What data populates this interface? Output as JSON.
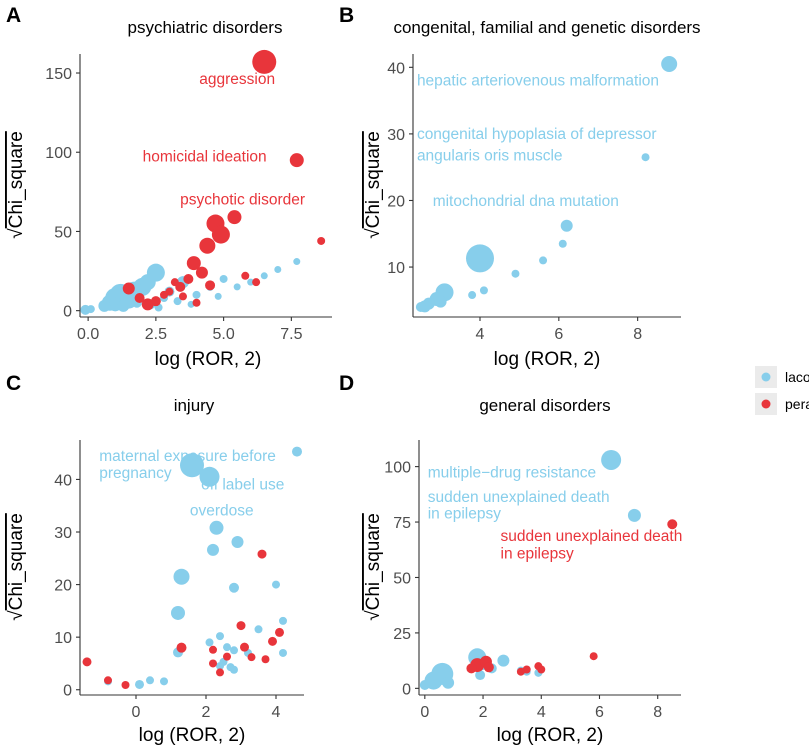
{
  "colors": {
    "lacosamide": "#87CEEB",
    "perampanel": "#E8353B",
    "axis": "#333333"
  },
  "legend": {
    "items": [
      {
        "key": "lacosamide",
        "label": "lacosamide"
      },
      {
        "key": "perampanel",
        "label": "perampanel"
      }
    ]
  },
  "chart_data": [
    {
      "type": "scatter",
      "panel_label": "A",
      "title": "psychiatric disorders",
      "xlabel": "log (ROR, 2)",
      "ylabel": "Chi_square",
      "ylabel_symbol": "√",
      "xlim": [
        -0.3,
        9.0
      ],
      "ylim": [
        -4,
        162
      ],
      "xticks": [
        0.0,
        2.5,
        5.0,
        7.5
      ],
      "xtick_labels": [
        "0.0",
        "2.5",
        "5.0",
        "7.5"
      ],
      "yticks": [
        0,
        50,
        100,
        150
      ],
      "ytick_labels": [
        "0",
        "50",
        "100",
        "150"
      ],
      "series": [
        {
          "name": "lacosamide",
          "points": [
            {
              "x": -0.1,
              "y": 0.5,
              "s": 5
            },
            {
              "x": 0.1,
              "y": 1,
              "s": 4
            },
            {
              "x": 0.6,
              "y": 3,
              "s": 6
            },
            {
              "x": 0.8,
              "y": 5,
              "s": 8
            },
            {
              "x": 1.0,
              "y": 8,
              "s": 10
            },
            {
              "x": 1.2,
              "y": 10,
              "s": 11
            },
            {
              "x": 1.5,
              "y": 7,
              "s": 9
            },
            {
              "x": 1.7,
              "y": 12,
              "s": 10
            },
            {
              "x": 2.0,
              "y": 15,
              "s": 9
            },
            {
              "x": 2.2,
              "y": 18,
              "s": 8
            },
            {
              "x": 2.5,
              "y": 24,
              "s": 9
            },
            {
              "x": 1.0,
              "y": 4,
              "s": 7
            },
            {
              "x": 1.3,
              "y": 3,
              "s": 6
            },
            {
              "x": 1.8,
              "y": 5,
              "s": 5
            },
            {
              "x": 2.3,
              "y": 4,
              "s": 5
            },
            {
              "x": 2.8,
              "y": 8,
              "s": 4
            },
            {
              "x": 3.0,
              "y": 12,
              "s": 5
            },
            {
              "x": 3.5,
              "y": 18,
              "s": 6
            },
            {
              "x": 3.3,
              "y": 6,
              "s": 4
            },
            {
              "x": 4.0,
              "y": 10,
              "s": 4
            },
            {
              "x": 4.5,
              "y": 15,
              "s": 4
            },
            {
              "x": 5.0,
              "y": 20,
              "s": 4
            },
            {
              "x": 5.5,
              "y": 15,
              "s": 3.5
            },
            {
              "x": 6.0,
              "y": 18,
              "s": 3.5
            },
            {
              "x": 6.5,
              "y": 22,
              "s": 3.5
            },
            {
              "x": 7.0,
              "y": 26,
              "s": 3.5
            },
            {
              "x": 7.7,
              "y": 31,
              "s": 3.5
            },
            {
              "x": 3.8,
              "y": 4,
              "s": 3.5
            },
            {
              "x": 2.6,
              "y": 2,
              "s": 4
            },
            {
              "x": 4.8,
              "y": 9,
              "s": 3.5
            }
          ]
        },
        {
          "name": "perampanel",
          "points": [
            {
              "x": 6.5,
              "y": 157,
              "s": 12
            },
            {
              "x": 7.7,
              "y": 95,
              "s": 7
            },
            {
              "x": 5.4,
              "y": 59,
              "s": 7
            },
            {
              "x": 4.7,
              "y": 55,
              "s": 9
            },
            {
              "x": 4.9,
              "y": 48,
              "s": 9
            },
            {
              "x": 4.4,
              "y": 41,
              "s": 8
            },
            {
              "x": 3.9,
              "y": 30,
              "s": 7
            },
            {
              "x": 4.2,
              "y": 24,
              "s": 6
            },
            {
              "x": 3.7,
              "y": 20,
              "s": 5
            },
            {
              "x": 4.5,
              "y": 16,
              "s": 5
            },
            {
              "x": 5.8,
              "y": 22,
              "s": 4
            },
            {
              "x": 6.2,
              "y": 18,
              "s": 4
            },
            {
              "x": 8.6,
              "y": 44,
              "s": 4
            },
            {
              "x": 3.4,
              "y": 15,
              "s": 5
            },
            {
              "x": 3.0,
              "y": 12,
              "s": 4
            },
            {
              "x": 2.8,
              "y": 10,
              "s": 4
            },
            {
              "x": 2.5,
              "y": 6,
              "s": 5
            },
            {
              "x": 2.2,
              "y": 4,
              "s": 6
            },
            {
              "x": 1.9,
              "y": 8,
              "s": 5
            },
            {
              "x": 3.5,
              "y": 9,
              "s": 4
            },
            {
              "x": 4.0,
              "y": 5,
              "s": 4
            },
            {
              "x": 1.5,
              "y": 14,
              "s": 6
            },
            {
              "x": 3.2,
              "y": 18,
              "s": 4
            }
          ]
        }
      ],
      "annotations": [
        {
          "text": "aggression",
          "series": "perampanel",
          "x": 5.5,
          "y": 143,
          "anchor": "middle"
        },
        {
          "text": "homicidal ideation",
          "series": "perampanel",
          "x": 4.3,
          "y": 94,
          "anchor": "middle"
        },
        {
          "text": "psychotic disorder",
          "series": "perampanel",
          "x": 5.7,
          "y": 67,
          "anchor": "middle"
        }
      ]
    },
    {
      "type": "scatter",
      "panel_label": "B",
      "title": "congenital, familial and genetic disorders",
      "xlabel": "log (ROR, 2)",
      "ylabel": "Chi_square",
      "ylabel_symbol": "√",
      "xlim": [
        2.3,
        9.1
      ],
      "ylim": [
        2.5,
        42
      ],
      "xticks": [
        4,
        6,
        8
      ],
      "xtick_labels": [
        "4",
        "6",
        "8"
      ],
      "yticks": [
        10,
        20,
        30,
        40
      ],
      "ytick_labels": [
        "10",
        "20",
        "30",
        "40"
      ],
      "series": [
        {
          "name": "lacosamide",
          "points": [
            {
              "x": 8.8,
              "y": 40.5,
              "s": 8
            },
            {
              "x": 8.2,
              "y": 26.5,
              "s": 4
            },
            {
              "x": 6.2,
              "y": 16.2,
              "s": 6
            },
            {
              "x": 6.1,
              "y": 13.5,
              "s": 4
            },
            {
              "x": 5.6,
              "y": 11,
              "s": 4
            },
            {
              "x": 4.9,
              "y": 9,
              "s": 4
            },
            {
              "x": 4.0,
              "y": 11.3,
              "s": 14
            },
            {
              "x": 4.1,
              "y": 6.5,
              "s": 4
            },
            {
              "x": 3.8,
              "y": 5.8,
              "s": 4
            },
            {
              "x": 3.1,
              "y": 6.2,
              "s": 9
            },
            {
              "x": 2.9,
              "y": 5.2,
              "s": 7
            },
            {
              "x": 2.7,
              "y": 4.5,
              "s": 6
            },
            {
              "x": 2.6,
              "y": 4.1,
              "s": 6
            },
            {
              "x": 2.5,
              "y": 4.0,
              "s": 5
            },
            {
              "x": 3.0,
              "y": 4.8,
              "s": 6
            }
          ]
        }
      ],
      "annotations": [
        {
          "text": "hepatic arteriovenous malformation",
          "series": "lacosamide",
          "x": 2.4,
          "y": 37.3,
          "anchor": "start"
        },
        {
          "text": "congenital hypoplasia of depressor",
          "series": "lacosamide",
          "x": 2.4,
          "y": 29.2,
          "anchor": "start"
        },
        {
          "text": "angularis oris muscle",
          "series": "lacosamide",
          "x": 2.4,
          "y": 26,
          "anchor": "start"
        },
        {
          "text": "mitochondrial dna mutation",
          "series": "lacosamide",
          "x": 2.8,
          "y": 19.2,
          "anchor": "start"
        }
      ]
    },
    {
      "type": "scatter",
      "panel_label": "C",
      "title": "injury",
      "xlabel": "log (ROR, 2)",
      "ylabel": "Chi_square",
      "ylabel_symbol": "√",
      "xlim": [
        -1.6,
        4.8
      ],
      "ylim": [
        -1,
        47.5
      ],
      "xticks": [
        0,
        2,
        4
      ],
      "xtick_labels": [
        "0",
        "2",
        "4"
      ],
      "yticks": [
        0,
        10,
        20,
        30,
        40
      ],
      "ytick_labels": [
        "0",
        "10",
        "20",
        "30",
        "40"
      ],
      "series": [
        {
          "name": "lacosamide",
          "points": [
            {
              "x": 4.6,
              "y": 45.3,
              "s": 5
            },
            {
              "x": 1.6,
              "y": 42.7,
              "s": 12
            },
            {
              "x": 2.1,
              "y": 40.5,
              "s": 10
            },
            {
              "x": 2.3,
              "y": 30.8,
              "s": 7
            },
            {
              "x": 2.9,
              "y": 28.1,
              "s": 6
            },
            {
              "x": 2.2,
              "y": 26.6,
              "s": 6
            },
            {
              "x": 1.3,
              "y": 21.5,
              "s": 8
            },
            {
              "x": 2.8,
              "y": 19.4,
              "s": 5
            },
            {
              "x": 4.0,
              "y": 20.0,
              "s": 4
            },
            {
              "x": 1.2,
              "y": 14.6,
              "s": 7
            },
            {
              "x": 4.2,
              "y": 13.1,
              "s": 4
            },
            {
              "x": 3.5,
              "y": 11.5,
              "s": 4
            },
            {
              "x": 2.4,
              "y": 10.2,
              "s": 4
            },
            {
              "x": 2.1,
              "y": 9.0,
              "s": 4
            },
            {
              "x": 2.6,
              "y": 8.1,
              "s": 4
            },
            {
              "x": 1.2,
              "y": 7.1,
              "s": 5
            },
            {
              "x": 2.8,
              "y": 7.5,
              "s": 4
            },
            {
              "x": 3.2,
              "y": 7.0,
              "s": 4
            },
            {
              "x": 4.2,
              "y": 7.0,
              "s": 4
            },
            {
              "x": 2.5,
              "y": 5.3,
              "s": 4
            },
            {
              "x": 2.7,
              "y": 4.3,
              "s": 4
            },
            {
              "x": 2.8,
              "y": 3.8,
              "s": 4
            },
            {
              "x": 2.4,
              "y": 4.5,
              "s": 4
            },
            {
              "x": 0.8,
              "y": 1.6,
              "s": 4
            },
            {
              "x": 0.4,
              "y": 1.8,
              "s": 4
            },
            {
              "x": 0.1,
              "y": 1.0,
              "s": 4.5
            },
            {
              "x": -0.8,
              "y": 1.6,
              "s": 4
            }
          ]
        },
        {
          "name": "perampanel",
          "points": [
            {
              "x": -1.4,
              "y": 5.3,
              "s": 4.5
            },
            {
              "x": -0.8,
              "y": 1.8,
              "s": 4
            },
            {
              "x": -0.3,
              "y": 0.9,
              "s": 4
            },
            {
              "x": 1.3,
              "y": 8.0,
              "s": 5
            },
            {
              "x": 3.6,
              "y": 25.8,
              "s": 4.5
            },
            {
              "x": 3.9,
              "y": 9.2,
              "s": 4.5
            },
            {
              "x": 4.1,
              "y": 10.9,
              "s": 4.5
            },
            {
              "x": 3.0,
              "y": 12.2,
              "s": 4.5
            },
            {
              "x": 3.1,
              "y": 8.1,
              "s": 4.5
            },
            {
              "x": 3.3,
              "y": 6.2,
              "s": 4
            },
            {
              "x": 2.4,
              "y": 3.3,
              "s": 4
            },
            {
              "x": 2.2,
              "y": 5.0,
              "s": 4
            },
            {
              "x": 2.2,
              "y": 7.6,
              "s": 4
            },
            {
              "x": 3.7,
              "y": 5.8,
              "s": 4
            },
            {
              "x": 2.6,
              "y": 6.3,
              "s": 4
            }
          ]
        }
      ],
      "annotations": [
        {
          "text": "maternal exposure before",
          "series": "lacosamide",
          "x": -1.05,
          "y": 43.5,
          "anchor": "start"
        },
        {
          "text": "pregnancy",
          "series": "lacosamide",
          "x": -1.05,
          "y": 40.3,
          "anchor": "start"
        },
        {
          "text": "off label use",
          "series": "lacosamide",
          "x": 3.05,
          "y": 38.1,
          "anchor": "middle"
        },
        {
          "text": "overdose",
          "series": "lacosamide",
          "x": 2.45,
          "y": 33.1,
          "anchor": "middle"
        }
      ]
    },
    {
      "type": "scatter",
      "panel_label": "D",
      "title": "general disorders",
      "xlabel": "log (ROR, 2)",
      "ylabel": "Chi_square",
      "ylabel_symbol": "√",
      "xlim": [
        -0.2,
        8.8
      ],
      "ylim": [
        -3,
        112
      ],
      "xticks": [
        0,
        2,
        4,
        6,
        8
      ],
      "xtick_labels": [
        "0",
        "2",
        "4",
        "6",
        "8"
      ],
      "yticks": [
        0,
        25,
        50,
        75,
        100
      ],
      "ytick_labels": [
        "0",
        "25",
        "50",
        "75",
        "100"
      ],
      "series": [
        {
          "name": "lacosamide",
          "points": [
            {
              "x": 6.4,
              "y": 103,
              "s": 10
            },
            {
              "x": 7.2,
              "y": 78,
              "s": 6.5
            },
            {
              "x": 0.6,
              "y": 6.5,
              "s": 11
            },
            {
              "x": 0.3,
              "y": 3.5,
              "s": 9
            },
            {
              "x": 0.8,
              "y": 2.5,
              "s": 6
            },
            {
              "x": 0.0,
              "y": 1.5,
              "s": 5
            },
            {
              "x": 1.8,
              "y": 14,
              "s": 9
            },
            {
              "x": 2.7,
              "y": 12.5,
              "s": 6
            },
            {
              "x": 2.0,
              "y": 11,
              "s": 6
            },
            {
              "x": 1.9,
              "y": 6,
              "s": 5
            },
            {
              "x": 3.3,
              "y": 8,
              "s": 4
            },
            {
              "x": 3.5,
              "y": 7.5,
              "s": 4
            },
            {
              "x": 3.9,
              "y": 7,
              "s": 4
            },
            {
              "x": 2.3,
              "y": 9,
              "s": 5
            }
          ]
        },
        {
          "name": "perampanel",
          "points": [
            {
              "x": 8.5,
              "y": 74,
              "s": 5
            },
            {
              "x": 1.8,
              "y": 10.5,
              "s": 7
            },
            {
              "x": 2.1,
              "y": 12,
              "s": 6
            },
            {
              "x": 1.6,
              "y": 9,
              "s": 5
            },
            {
              "x": 2.2,
              "y": 9.5,
              "s": 5
            },
            {
              "x": 3.5,
              "y": 8.5,
              "s": 4
            },
            {
              "x": 3.9,
              "y": 10,
              "s": 4
            },
            {
              "x": 4.0,
              "y": 8.5,
              "s": 4
            },
            {
              "x": 5.8,
              "y": 14.5,
              "s": 4
            },
            {
              "x": 3.3,
              "y": 7.5,
              "s": 4
            }
          ]
        }
      ],
      "annotations": [
        {
          "text": "multiple−drug resistance",
          "series": "lacosamide",
          "x": 0.1,
          "y": 95,
          "anchor": "start"
        },
        {
          "text": "sudden unexplained death",
          "series": "lacosamide",
          "x": 0.1,
          "y": 84,
          "anchor": "start"
        },
        {
          "text": "in epilepsy",
          "series": "lacosamide",
          "x": 0.1,
          "y": 76.5,
          "anchor": "start"
        },
        {
          "text": "sudden unexplained death",
          "series": "perampanel",
          "x": 2.6,
          "y": 66.5,
          "anchor": "start"
        },
        {
          "text": "in epilepsy",
          "series": "perampanel",
          "x": 2.6,
          "y": 58.5,
          "anchor": "start"
        }
      ]
    }
  ]
}
